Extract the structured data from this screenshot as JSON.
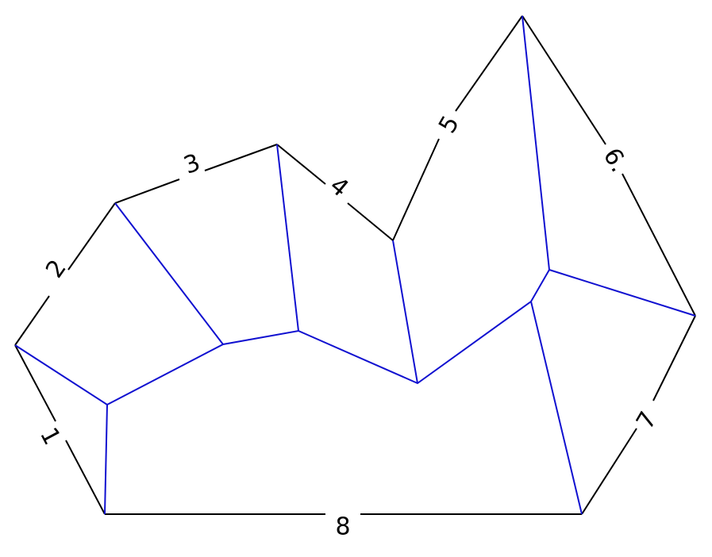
{
  "diagram": {
    "edge_labels": [
      "1",
      "2",
      "3",
      "4",
      "5",
      "6.",
      "7",
      "8"
    ],
    "colors": {
      "polygon_edge": "#000000",
      "skeleton": "#1010d0",
      "background": "#ffffff"
    }
  }
}
